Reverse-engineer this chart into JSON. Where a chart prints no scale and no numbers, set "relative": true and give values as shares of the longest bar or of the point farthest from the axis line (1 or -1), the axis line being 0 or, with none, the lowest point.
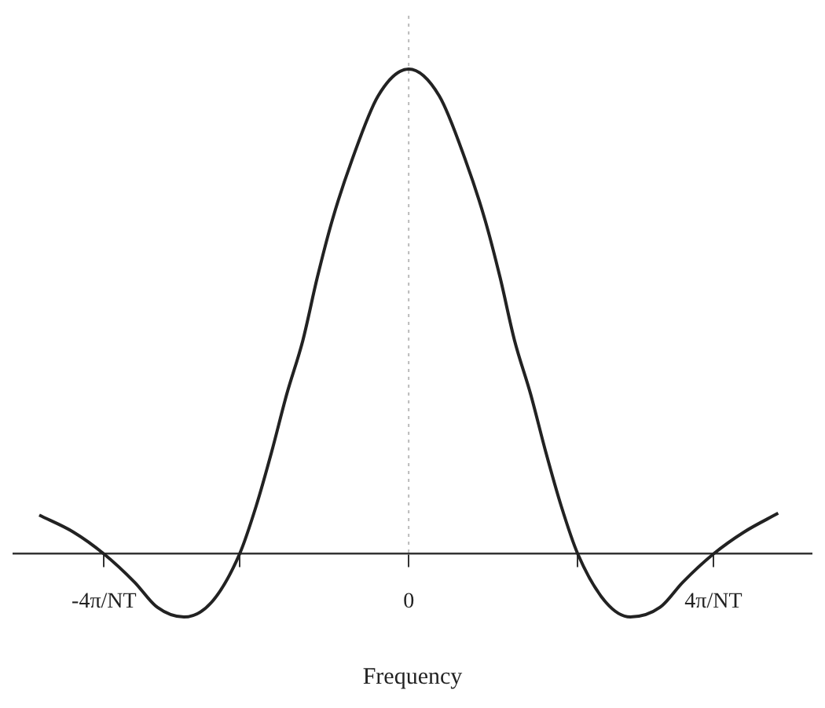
{
  "chart_data": {
    "type": "line",
    "relative": true,
    "xlabel": "Frequency",
    "xlim": [
      -5.2,
      5.3
    ],
    "xticks": [
      {
        "value": -4,
        "label": "-4π/NT"
      },
      {
        "value": -2.22,
        "label": null
      },
      0,
      {
        "value": 2.22,
        "label": null
      },
      {
        "value": 4,
        "label": "4π/NT"
      }
    ],
    "series": [
      {
        "color": "#222222",
        "x": [
          -4.85,
          -4.4,
          -4,
          -3.6,
          -3.3,
          -2.95,
          -2.59,
          -2.22,
          -2,
          -1.8,
          -1.6,
          -1.39,
          -1.2,
          -1,
          -0.75,
          -0.4,
          0,
          0.4,
          0.75,
          1,
          1.2,
          1.39,
          1.6,
          1.8,
          2,
          2.22,
          2.59,
          2.91,
          3.3,
          3.6,
          4,
          4.4,
          4.85
        ],
        "values": [
          0.08,
          0.045,
          0,
          -0.058,
          -0.11,
          -0.13,
          -0.1,
          0,
          0.1,
          0.21,
          0.33,
          0.44,
          0.57,
          0.69,
          0.81,
          0.945,
          1,
          0.945,
          0.81,
          0.69,
          0.57,
          0.44,
          0.33,
          0.21,
          0.1,
          0,
          -0.1,
          -0.13,
          -0.11,
          -0.058,
          0,
          0.045,
          0.084
        ]
      }
    ],
    "ref_lines": [
      {
        "axis": "x",
        "value": 0,
        "line_style": "dotted",
        "color": "#bbbbbb"
      }
    ],
    "grid": false,
    "legend": false,
    "marker": "none",
    "line_style": "solid"
  }
}
